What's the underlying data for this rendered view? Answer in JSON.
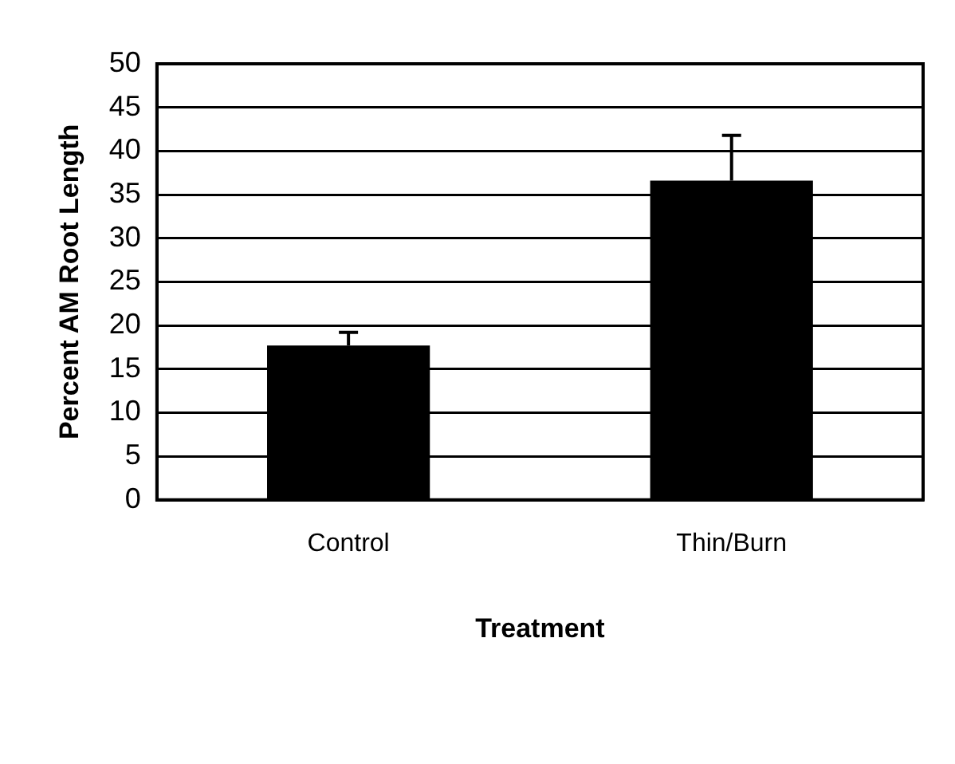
{
  "chart_data": {
    "type": "bar",
    "xlabel": "Treatment",
    "ylabel": "Percent AM Root Length",
    "categories": [
      "Control",
      "Thin/Burn"
    ],
    "values": [
      17.7,
      36.6
    ],
    "errors": [
      [
        17.7,
        19.2
      ],
      [
        36.6,
        41.8
      ]
    ],
    "color": "#000000",
    "ylim": [
      0,
      50
    ],
    "yticks": [
      0,
      5,
      10,
      15,
      20,
      25,
      30,
      35,
      40,
      45,
      50
    ],
    "grid": "y"
  }
}
